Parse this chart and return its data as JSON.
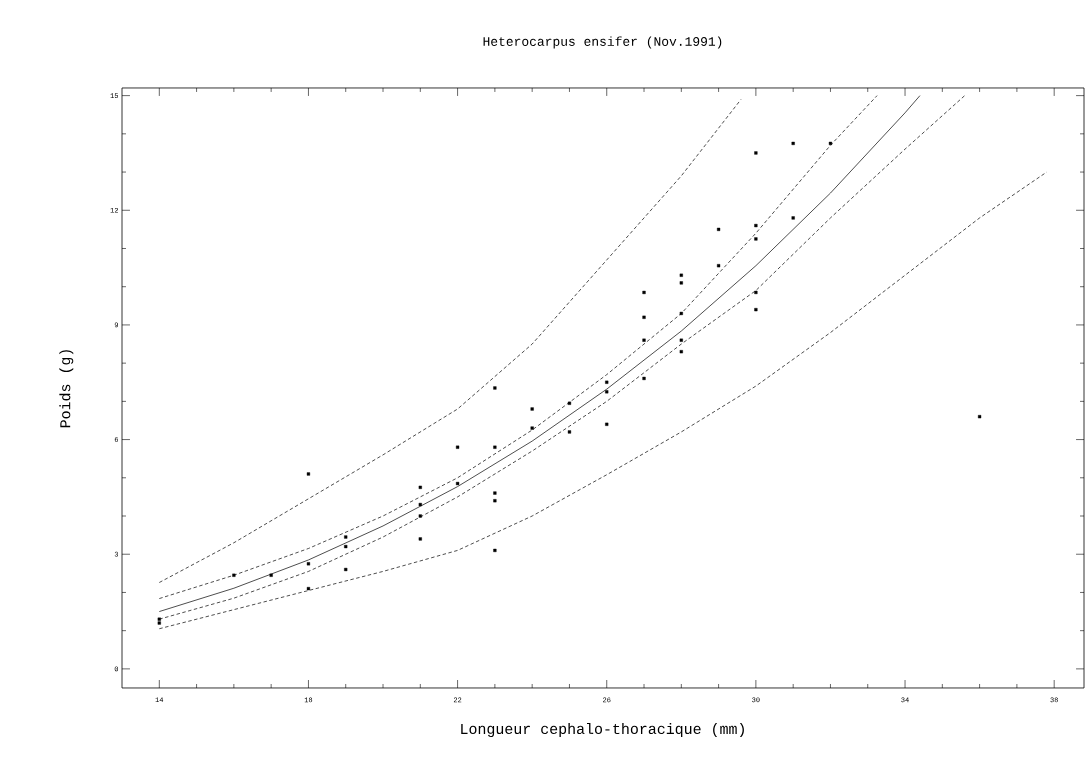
{
  "chart_data": {
    "type": "scatter",
    "title": "Heterocarpus ensifer (Nov.1991)",
    "xlabel": "Longueur cephalo-thoracique (mm)",
    "ylabel": "Poids (g)",
    "xlim": [
      13,
      38.8
    ],
    "ylim": [
      -0.5,
      15.2
    ],
    "xticks": [
      14,
      18,
      22,
      26,
      30,
      34,
      38
    ],
    "yticks": [
      0,
      3,
      6,
      9,
      12,
      15
    ],
    "series": [
      {
        "marker": "square",
        "color": "#000000",
        "x": [
          14,
          14,
          16,
          17,
          18,
          18,
          18,
          19,
          19,
          19,
          21,
          21,
          21,
          21,
          22,
          22,
          23,
          23,
          23,
          23,
          23,
          24,
          24,
          25,
          25,
          26,
          26,
          26,
          27,
          27,
          27,
          27,
          28,
          28,
          28,
          28,
          28,
          29,
          29,
          30,
          30,
          30,
          30,
          30,
          31,
          31,
          32,
          36
        ],
        "values": [
          1.3,
          1.2,
          2.45,
          2.45,
          5.1,
          2.75,
          2.1,
          3.45,
          3.2,
          2.6,
          4.75,
          4.3,
          4.0,
          3.4,
          5.8,
          4.85,
          7.35,
          5.8,
          4.6,
          4.4,
          3.1,
          6.8,
          6.3,
          6.95,
          6.2,
          7.5,
          7.25,
          6.4,
          9.85,
          9.2,
          8.6,
          7.6,
          10.3,
          10.1,
          9.3,
          8.6,
          8.3,
          11.5,
          10.55,
          13.5,
          11.6,
          11.25,
          9.85,
          9.4,
          13.75,
          11.8,
          13.75,
          6.6
        ]
      },
      {
        "type": "line",
        "line_style": "solid",
        "color": "#000000",
        "x": [
          14,
          16,
          18,
          20,
          22,
          24,
          26,
          28,
          30,
          32,
          34,
          34.4
        ],
        "values": [
          1.5,
          2.11,
          2.85,
          3.74,
          4.77,
          5.96,
          7.32,
          8.84,
          10.55,
          12.45,
          14.55,
          15.0
        ]
      },
      {
        "type": "line",
        "line_style": "dashed",
        "color": "#000000",
        "x": [
          14,
          16,
          18,
          20,
          22,
          24,
          26,
          28,
          30,
          32,
          33.25
        ],
        "values": [
          1.84,
          2.45,
          3.15,
          4.0,
          5.0,
          6.25,
          7.7,
          9.3,
          11.4,
          13.7,
          15.0
        ]
      },
      {
        "type": "line",
        "line_style": "dashed",
        "color": "#000000",
        "x": [
          14,
          16,
          18,
          20,
          22,
          24,
          26,
          28,
          30,
          32,
          34,
          35.6
        ],
        "values": [
          1.3,
          1.85,
          2.55,
          3.45,
          4.5,
          5.7,
          7.0,
          8.5,
          9.9,
          11.8,
          13.6,
          15.0
        ]
      },
      {
        "type": "line",
        "line_style": "dashed",
        "color": "#000000",
        "x": [
          14,
          16,
          18,
          20,
          22,
          24,
          26,
          28,
          29.6
        ],
        "values": [
          2.26,
          3.3,
          4.45,
          5.6,
          6.8,
          8.5,
          10.7,
          12.9,
          14.9
        ]
      },
      {
        "type": "line",
        "line_style": "dashed",
        "color": "#000000",
        "x": [
          14,
          18,
          20,
          22,
          24,
          26,
          28,
          30,
          32,
          34,
          36,
          37.8
        ],
        "values": [
          1.05,
          2.05,
          2.55,
          3.1,
          4.0,
          5.08,
          6.2,
          7.4,
          8.8,
          10.3,
          11.8,
          13.0
        ]
      }
    ]
  }
}
